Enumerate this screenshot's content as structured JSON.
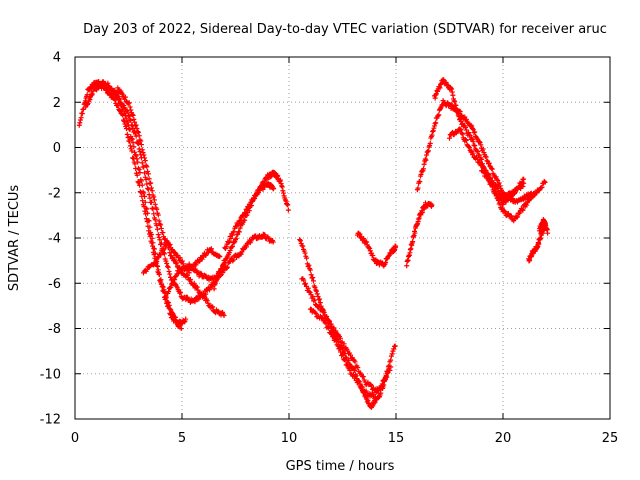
{
  "chart_data": {
    "type": "scatter",
    "title": "Day 203 of 2022, Sidereal Day-to-day VTEC variation (SDTVAR) for receiver aruc",
    "xlabel": "GPS time / hours",
    "ylabel": "SDTVAR / TECUs",
    "xlim": [
      0,
      25
    ],
    "ylim": [
      -12,
      4
    ],
    "xticks": [
      "0",
      "5",
      "10",
      "15",
      "20",
      "25"
    ],
    "yticks": [
      "4",
      "2",
      "0",
      "-2",
      "-4",
      "-6",
      "-8",
      "-10",
      "-12"
    ],
    "grid": true,
    "marker": "+",
    "series": [
      {
        "name": "SDTVAR",
        "color": "#ff0000",
        "tracks": [
          {
            "x": [
              0.2,
              0.6,
              1.0,
              1.5,
              2.0,
              2.5,
              3.0,
              3.5,
              4.0,
              4.5,
              5.0
            ],
            "y": [
              1.0,
              2.5,
              2.9,
              2.8,
              2.3,
              1.0,
              -1.0,
              -3.5,
              -6.0,
              -7.5,
              -8.0
            ]
          },
          {
            "x": [
              0.5,
              0.9,
              1.3,
              1.8,
              2.3,
              2.8,
              3.3,
              3.8,
              4.3,
              4.8,
              5.2
            ],
            "y": [
              1.8,
              2.6,
              2.7,
              2.2,
              1.2,
              -0.8,
              -3.0,
              -5.2,
              -6.8,
              -7.8,
              -7.6
            ]
          },
          {
            "x": [
              1.2,
              1.6,
              2.0,
              2.5,
              3.0,
              3.5,
              4.0,
              4.5,
              5.0,
              5.5,
              6.0,
              6.5,
              7.0
            ],
            "y": [
              2.8,
              2.6,
              2.2,
              1.5,
              0.0,
              -2.2,
              -4.2,
              -5.8,
              -6.6,
              -6.8,
              -6.5,
              -6.0,
              -5.0
            ]
          },
          {
            "x": [
              2.0,
              2.5,
              3.0,
              3.5,
              4.0,
              4.5,
              5.0,
              5.5,
              6.0,
              6.5,
              7.0
            ],
            "y": [
              2.6,
              2.0,
              0.5,
              -1.5,
              -3.5,
              -4.8,
              -5.5,
              -6.0,
              -6.6,
              -7.2,
              -7.4
            ]
          },
          {
            "x": [
              3.2,
              3.8,
              4.3,
              4.8,
              5.3,
              5.8,
              6.3,
              6.8
            ],
            "y": [
              -5.5,
              -5.0,
              -4.2,
              -4.8,
              -5.5,
              -5.0,
              -4.5,
              -4.8
            ]
          },
          {
            "x": [
              4.3,
              4.8,
              5.3,
              5.8,
              6.3,
              6.8,
              7.3,
              7.8,
              8.3,
              8.8,
              9.3
            ],
            "y": [
              -6.5,
              -5.5,
              -5.2,
              -5.6,
              -5.8,
              -5.6,
              -5.0,
              -4.6,
              -4.0,
              -3.9,
              -4.2
            ]
          },
          {
            "x": [
              6.5,
              7.0,
              7.5,
              8.0,
              8.5,
              9.0,
              9.3,
              9.6,
              10.0
            ],
            "y": [
              -6.2,
              -5.0,
              -4.0,
              -3.0,
              -2.0,
              -1.3,
              -1.1,
              -1.5,
              -2.8
            ]
          },
          {
            "x": [
              7.0,
              7.5,
              8.0,
              8.5,
              9.0,
              9.3
            ],
            "y": [
              -4.5,
              -3.5,
              -2.8,
              -2.0,
              -1.6,
              -1.8
            ]
          },
          {
            "x": [
              10.5,
              11.0,
              11.5,
              12.0,
              12.5,
              13.0,
              13.5,
              14.0,
              14.5,
              15.0
            ],
            "y": [
              -4.0,
              -5.5,
              -7.0,
              -8.0,
              -9.0,
              -9.8,
              -10.8,
              -11.0,
              -10.2,
              -8.6
            ]
          },
          {
            "x": [
              10.6,
              11.2,
              11.8,
              12.4,
              13.0,
              13.6,
              14.2,
              14.8
            ],
            "y": [
              -5.8,
              -6.8,
              -7.6,
              -8.5,
              -9.4,
              -10.4,
              -10.8,
              -9.6
            ]
          },
          {
            "x": [
              11.0,
              11.6,
              12.2,
              12.8,
              13.4,
              13.8,
              14.2,
              14.6
            ],
            "y": [
              -7.2,
              -7.6,
              -8.6,
              -9.8,
              -10.6,
              -11.5,
              -11.0,
              -10.0
            ]
          },
          {
            "x": [
              13.2,
              13.6,
              14.0,
              14.4,
              14.8,
              15.0
            ],
            "y": [
              -3.8,
              -4.2,
              -5.0,
              -5.2,
              -4.6,
              -4.4
            ]
          },
          {
            "x": [
              15.5,
              15.8,
              16.1,
              16.4,
              16.7
            ],
            "y": [
              -5.2,
              -4.0,
              -3.0,
              -2.5,
              -2.6
            ]
          },
          {
            "x": [
              16.0,
              16.4,
              16.8,
              17.2,
              17.6,
              18.0,
              18.5,
              19.0,
              19.5,
              20.0,
              20.5,
              21.0,
              21.5,
              22.0
            ],
            "y": [
              -1.8,
              -0.5,
              1.0,
              2.0,
              1.8,
              1.5,
              1.0,
              0.0,
              -1.0,
              -2.0,
              -2.4,
              -2.2,
              -2.0,
              -1.5
            ]
          },
          {
            "x": [
              16.8,
              17.2,
              17.6,
              18.0,
              18.5,
              19.0,
              19.5,
              20.0,
              20.5,
              21.0,
              21.5
            ],
            "y": [
              2.2,
              3.0,
              2.5,
              1.2,
              0.4,
              -0.6,
              -1.8,
              -2.8,
              -3.2,
              -2.6,
              -2.0
            ]
          },
          {
            "x": [
              17.5,
              18.0,
              18.5,
              19.0,
              19.5,
              20.0,
              20.5,
              21.0
            ],
            "y": [
              0.5,
              0.8,
              -0.2,
              -0.8,
              -1.5,
              -2.2,
              -2.0,
              -1.4
            ]
          },
          {
            "x": [
              19.0,
              19.5,
              20.0,
              20.5,
              21.0
            ],
            "y": [
              -1.0,
              -1.6,
              -2.5,
              -2.0,
              -1.6
            ]
          },
          {
            "x": [
              21.2,
              21.4,
              21.6,
              21.8,
              22.0
            ],
            "y": [
              -5.0,
              -4.6,
              -4.4,
              -3.8,
              -3.4
            ]
          },
          {
            "x": [
              21.7,
              21.9,
              22.1
            ],
            "y": [
              -3.6,
              -3.2,
              -3.8
            ]
          }
        ]
      }
    ]
  }
}
